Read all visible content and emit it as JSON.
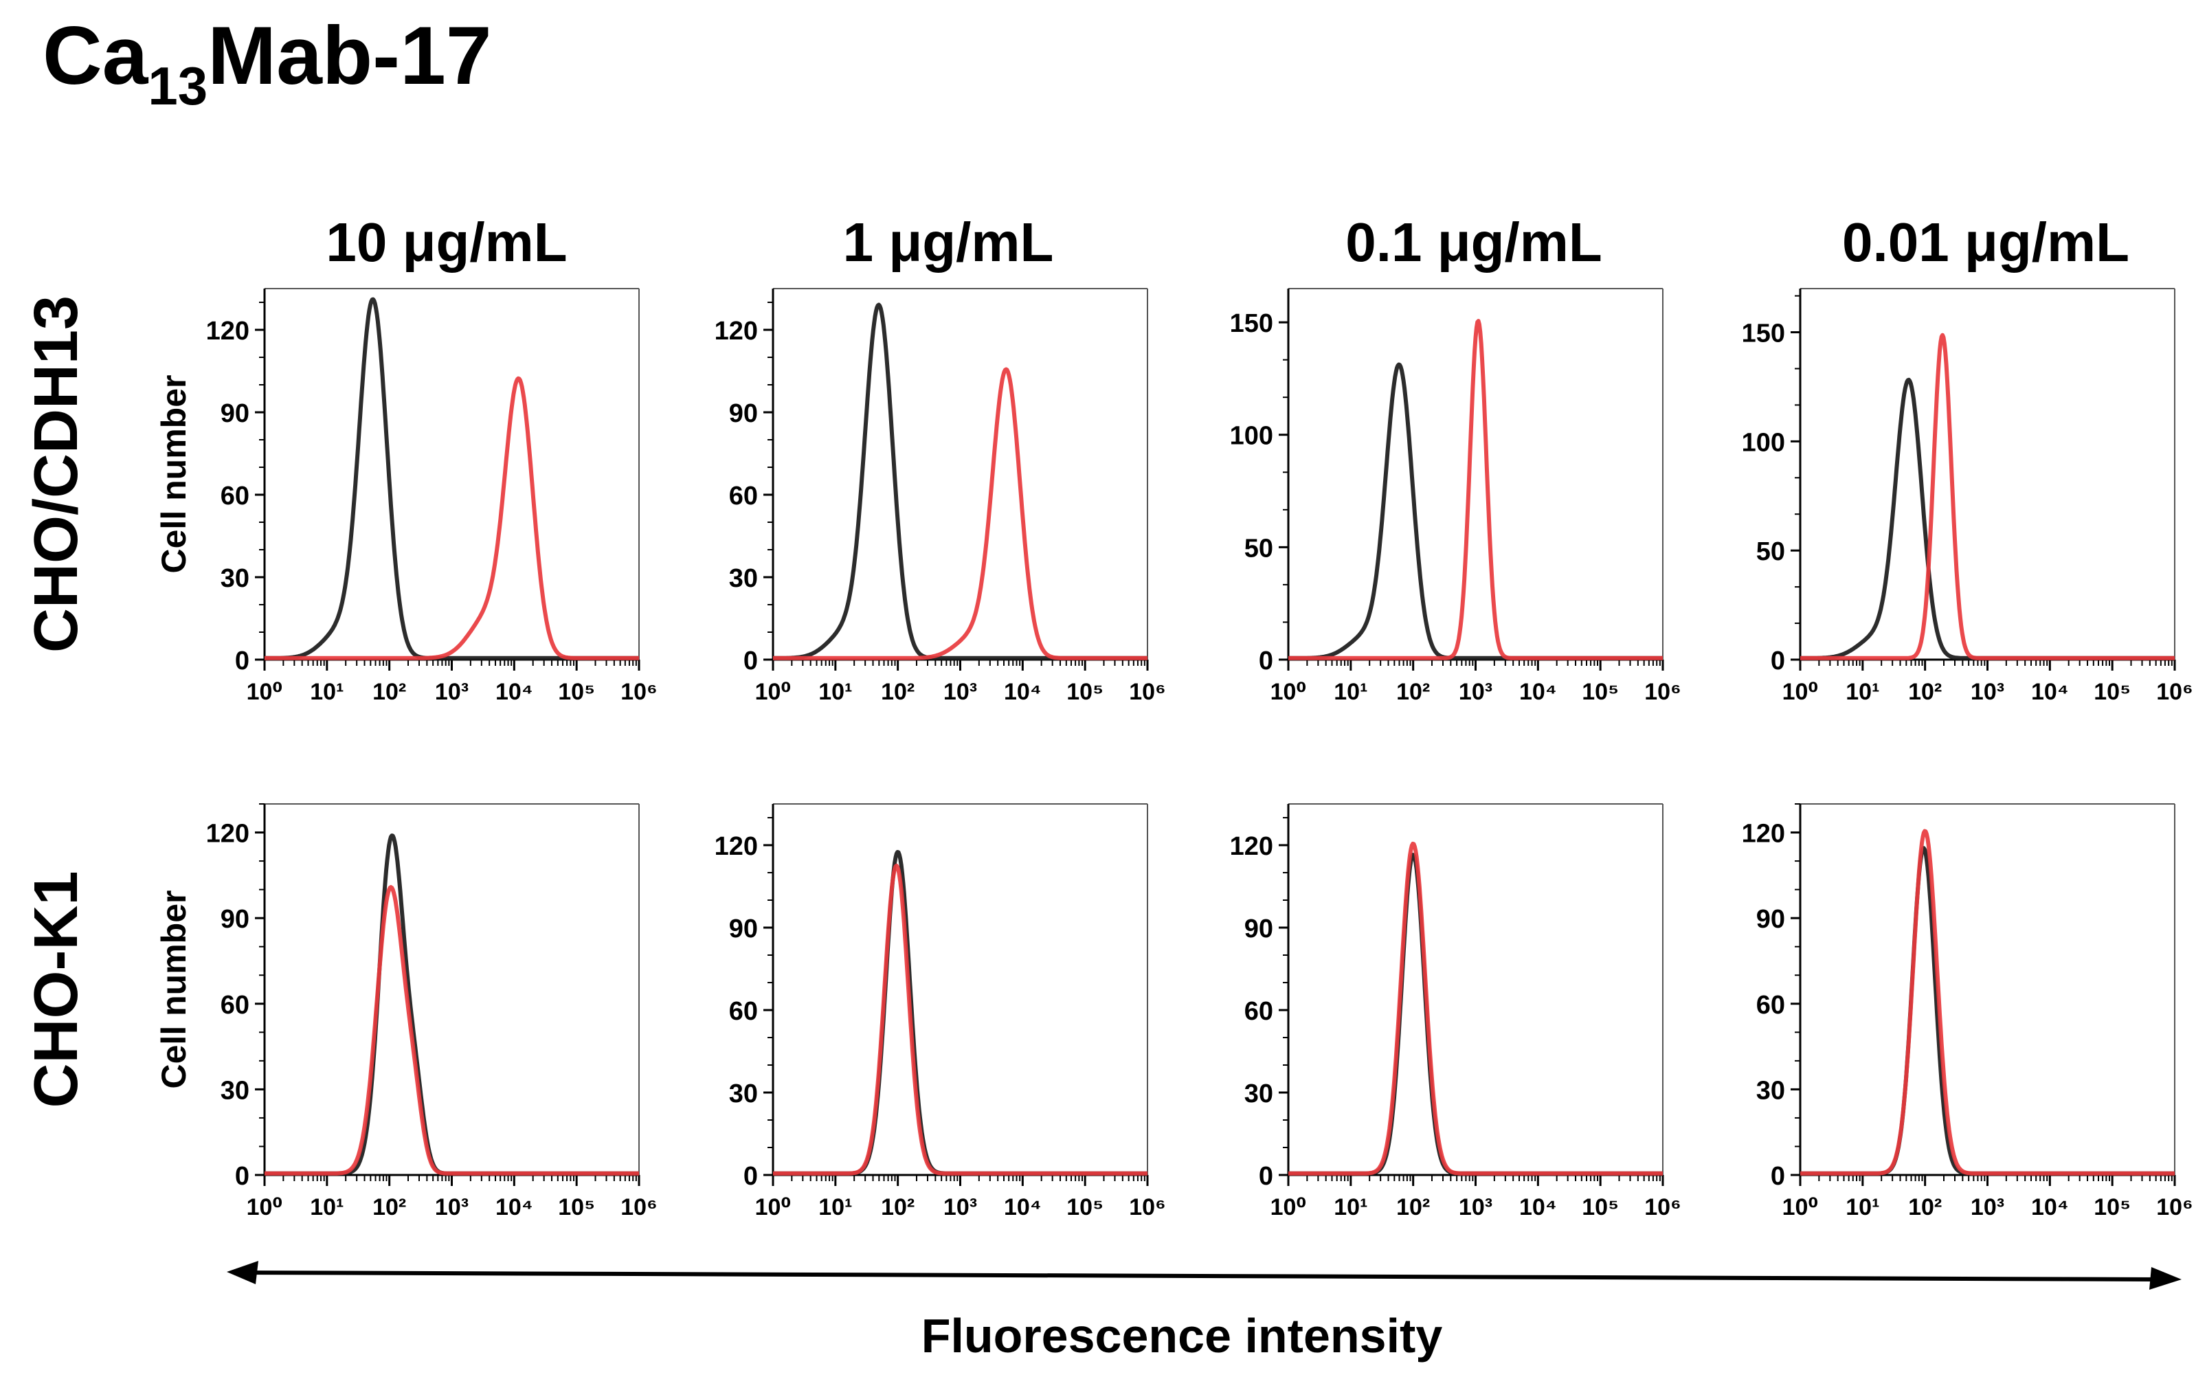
{
  "figure": {
    "title_main": "Ca",
    "title_sub": "13",
    "title_rest": "Mab-17",
    "xlabel": "Fluorescence intensity",
    "ylabel": "Cell number",
    "columns": [
      "10 μg/mL",
      "1 μg/mL",
      "0.1 μg/mL",
      "0.01 μg/mL"
    ],
    "rows": [
      "CHO/CDH13",
      "CHO-K1"
    ],
    "colors": {
      "control": "#1a1a1a",
      "antibody": "#e8393d",
      "axis": "#000000",
      "frame": "#555555"
    }
  },
  "chart_data": [
    {
      "type": "area",
      "row": "CHO/CDH13",
      "column": "10 μg/mL",
      "xscale": "log",
      "xlim": [
        1,
        1000000
      ],
      "ylim": [
        0,
        135
      ],
      "yticks": [
        0,
        30,
        60,
        90,
        120
      ],
      "series": [
        {
          "name": "",
          "color": "#1a1a1a",
          "peak_x": 55,
          "peak_y": 128,
          "width": 0.22,
          "left_shoulder": 0.08,
          "right_shoulder": 0
        },
        {
          "name": "",
          "color": "#e8393d",
          "peak_x": 12000,
          "peak_y": 98,
          "width": 0.22,
          "left_shoulder": 0.15,
          "right_shoulder": 0
        }
      ]
    },
    {
      "type": "area",
      "row": "CHO/CDH13",
      "column": "1 μg/mL",
      "xscale": "log",
      "xlim": [
        1,
        1000000
      ],
      "ylim": [
        0,
        135
      ],
      "yticks": [
        0,
        30,
        60,
        90,
        120
      ],
      "series": [
        {
          "name": "",
          "color": "#1a1a1a",
          "peak_x": 50,
          "peak_y": 126,
          "width": 0.22,
          "left_shoulder": 0.08,
          "right_shoulder": 0
        },
        {
          "name": "",
          "color": "#e8393d",
          "peak_x": 5500,
          "peak_y": 103,
          "width": 0.22,
          "left_shoulder": 0.08,
          "right_shoulder": 0
        }
      ]
    },
    {
      "type": "area",
      "row": "CHO/CDH13",
      "column": "0.1 μg/mL",
      "xscale": "log",
      "xlim": [
        1,
        1000000
      ],
      "ylim": [
        0,
        165
      ],
      "yticks": [
        0,
        50,
        100,
        150
      ],
      "series": [
        {
          "name": "",
          "color": "#1a1a1a",
          "peak_x": 60,
          "peak_y": 128,
          "width": 0.21,
          "left_shoulder": 0.08,
          "right_shoulder": 0
        },
        {
          "name": "",
          "color": "#e8393d",
          "peak_x": 1100,
          "peak_y": 150,
          "width": 0.13,
          "left_shoulder": 0,
          "right_shoulder": 0
        }
      ]
    },
    {
      "type": "area",
      "row": "CHO/CDH13",
      "column": "0.01 μg/mL",
      "xscale": "log",
      "xlim": [
        1,
        1000000
      ],
      "ylim": [
        0,
        170
      ],
      "yticks": [
        0,
        50,
        100,
        150
      ],
      "series": [
        {
          "name": "",
          "color": "#1a1a1a",
          "peak_x": 55,
          "peak_y": 125,
          "width": 0.21,
          "left_shoulder": 0.08,
          "right_shoulder": 0
        },
        {
          "name": "",
          "color": "#e8393d",
          "peak_x": 190,
          "peak_y": 148,
          "width": 0.14,
          "left_shoulder": 0,
          "right_shoulder": 0
        }
      ]
    },
    {
      "type": "area",
      "row": "CHO-K1",
      "column": "10 μg/mL",
      "xscale": "log",
      "xlim": [
        1,
        1000000
      ],
      "ylim": [
        0,
        130
      ],
      "yticks": [
        0,
        30,
        60,
        90,
        120
      ],
      "series": [
        {
          "name": "",
          "color": "#1a1a1a",
          "peak_x": 110,
          "peak_y": 118,
          "width": 0.2,
          "left_shoulder": 0,
          "right_shoulder": 0.2
        },
        {
          "name": "",
          "color": "#e8393d",
          "peak_x": 105,
          "peak_y": 100,
          "width": 0.22,
          "left_shoulder": 0,
          "right_shoulder": 0.18
        }
      ]
    },
    {
      "type": "area",
      "row": "CHO-K1",
      "column": "1 μg/mL",
      "xscale": "log",
      "xlim": [
        1,
        1000000
      ],
      "ylim": [
        0,
        135
      ],
      "yticks": [
        0,
        30,
        60,
        90,
        120
      ],
      "series": [
        {
          "name": "",
          "color": "#1a1a1a",
          "peak_x": 100,
          "peak_y": 117,
          "width": 0.19,
          "left_shoulder": 0,
          "right_shoulder": 0
        },
        {
          "name": "",
          "color": "#e8393d",
          "peak_x": 95,
          "peak_y": 112,
          "width": 0.19,
          "left_shoulder": 0,
          "right_shoulder": 0
        }
      ]
    },
    {
      "type": "area",
      "row": "CHO-K1",
      "column": "0.1 μg/mL",
      "xscale": "log",
      "xlim": [
        1,
        1000000
      ],
      "ylim": [
        0,
        135
      ],
      "yticks": [
        0,
        30,
        60,
        90,
        120
      ],
      "series": [
        {
          "name": "",
          "color": "#1a1a1a",
          "peak_x": 100,
          "peak_y": 116,
          "width": 0.18,
          "left_shoulder": 0,
          "right_shoulder": 0
        },
        {
          "name": "",
          "color": "#e8393d",
          "peak_x": 100,
          "peak_y": 120,
          "width": 0.19,
          "left_shoulder": 0,
          "right_shoulder": 0
        }
      ]
    },
    {
      "type": "area",
      "row": "CHO-K1",
      "column": "0.01 μg/mL",
      "xscale": "log",
      "xlim": [
        1,
        1000000
      ],
      "ylim": [
        0,
        130
      ],
      "yticks": [
        0,
        30,
        60,
        90,
        120
      ],
      "series": [
        {
          "name": "",
          "color": "#1a1a1a",
          "peak_x": 95,
          "peak_y": 114,
          "width": 0.18,
          "left_shoulder": 0,
          "right_shoulder": 0
        },
        {
          "name": "",
          "color": "#e8393d",
          "peak_x": 100,
          "peak_y": 120,
          "width": 0.19,
          "left_shoulder": 0,
          "right_shoulder": 0
        }
      ]
    }
  ]
}
